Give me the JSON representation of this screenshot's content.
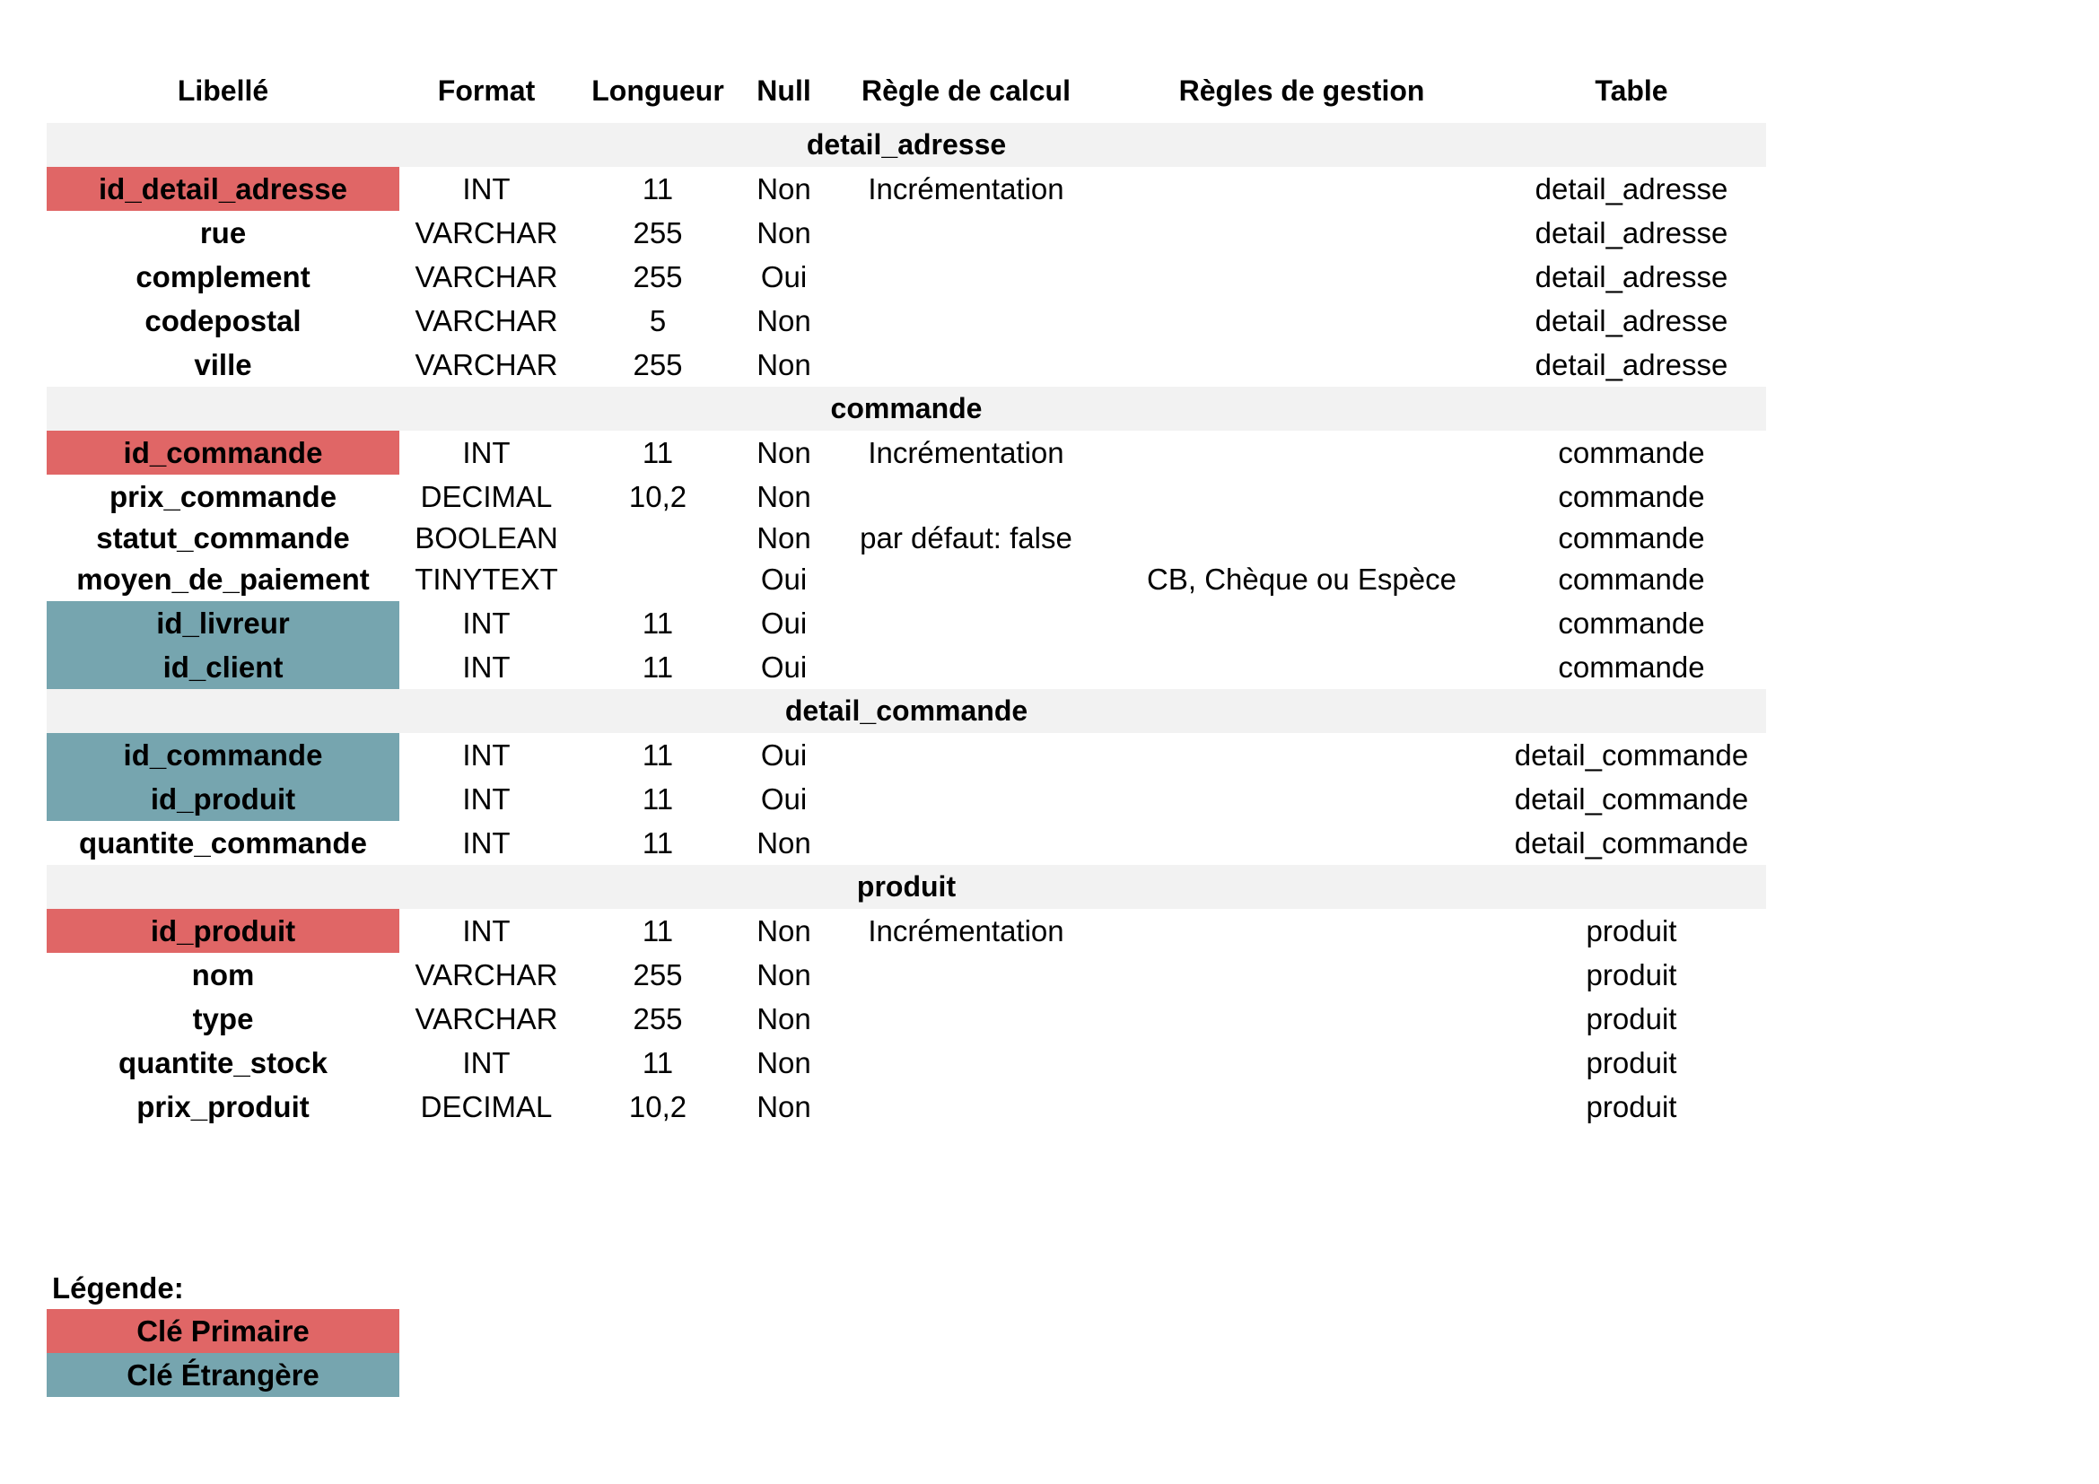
{
  "columns": [
    "Libellé",
    "Format",
    "Longueur",
    "Null",
    "Règle de calcul",
    "Règles de gestion",
    "Table"
  ],
  "sections": [
    {
      "name": "detail_adresse",
      "rows": [
        {
          "libelle": "id_detail_adresse",
          "format": "INT",
          "longueur": "11",
          "null": "Non",
          "calcul": "Incrémentation",
          "gestion": "",
          "table": "detail_adresse",
          "key": "primary"
        },
        {
          "libelle": "rue",
          "format": "VARCHAR",
          "longueur": "255",
          "null": "Non",
          "calcul": "",
          "gestion": "",
          "table": "detail_adresse",
          "key": ""
        },
        {
          "libelle": "complement",
          "format": "VARCHAR",
          "longueur": "255",
          "null": "Oui",
          "calcul": "",
          "gestion": "",
          "table": "detail_adresse",
          "key": ""
        },
        {
          "libelle": "codepostal",
          "format": "VARCHAR",
          "longueur": "5",
          "null": "Non",
          "calcul": "",
          "gestion": "",
          "table": "detail_adresse",
          "key": ""
        },
        {
          "libelle": "ville",
          "format": "VARCHAR",
          "longueur": "255",
          "null": "Non",
          "calcul": "",
          "gestion": "",
          "table": "detail_adresse",
          "key": ""
        }
      ]
    },
    {
      "name": "commande",
      "rows": [
        {
          "libelle": "id_commande",
          "format": "INT",
          "longueur": "11",
          "null": "Non",
          "calcul": "Incrémentation",
          "gestion": "",
          "table": "commande",
          "key": "primary"
        },
        {
          "libelle": "prix_commande",
          "format": "DECIMAL",
          "longueur": "10,2",
          "null": "Non",
          "calcul": "",
          "gestion": "",
          "table": "commande",
          "key": ""
        },
        {
          "libelle": "statut_commande",
          "format": "BOOLEAN",
          "longueur": "",
          "null": "Non",
          "calcul": "par défaut: false",
          "gestion": "",
          "table": "commande",
          "key": "",
          "tight": true
        },
        {
          "libelle": "moyen_de_paiement",
          "format": "TINYTEXT",
          "longueur": "",
          "null": "Oui",
          "calcul": "",
          "gestion": "CB, Chèque ou Espèce",
          "table": "commande",
          "key": ""
        },
        {
          "libelle": "id_livreur",
          "format": "INT",
          "longueur": "11",
          "null": "Oui",
          "calcul": "",
          "gestion": "",
          "table": "commande",
          "key": "foreign"
        },
        {
          "libelle": "id_client",
          "format": "INT",
          "longueur": "11",
          "null": "Oui",
          "calcul": "",
          "gestion": "",
          "table": "commande",
          "key": "foreign"
        }
      ]
    },
    {
      "name": "detail_commande",
      "rows": [
        {
          "libelle": "id_commande",
          "format": "INT",
          "longueur": "11",
          "null": "Oui",
          "calcul": "",
          "gestion": "",
          "table": "detail_commande",
          "key": "foreign"
        },
        {
          "libelle": "id_produit",
          "format": "INT",
          "longueur": "11",
          "null": "Oui",
          "calcul": "",
          "gestion": "",
          "table": "detail_commande",
          "key": "foreign"
        },
        {
          "libelle": "quantite_commande",
          "format": "INT",
          "longueur": "11",
          "null": "Non",
          "calcul": "",
          "gestion": "",
          "table": "detail_commande",
          "key": ""
        }
      ]
    },
    {
      "name": "produit",
      "rows": [
        {
          "libelle": "id_produit",
          "format": "INT",
          "longueur": "11",
          "null": "Non",
          "calcul": "Incrémentation",
          "gestion": "",
          "table": "produit",
          "key": "primary"
        },
        {
          "libelle": "nom",
          "format": "VARCHAR",
          "longueur": "255",
          "null": "Non",
          "calcul": "",
          "gestion": "",
          "table": "produit",
          "key": ""
        },
        {
          "libelle": "type",
          "format": "VARCHAR",
          "longueur": "255",
          "null": "Non",
          "calcul": "",
          "gestion": "",
          "table": "produit",
          "key": ""
        },
        {
          "libelle": "quantite_stock",
          "format": "INT",
          "longueur": "11",
          "null": "Non",
          "calcul": "",
          "gestion": "",
          "table": "produit",
          "key": ""
        },
        {
          "libelle": "prix_produit",
          "format": "DECIMAL",
          "longueur": "10,2",
          "null": "Non",
          "calcul": "",
          "gestion": "",
          "table": "produit",
          "key": ""
        }
      ]
    }
  ],
  "legend": {
    "title": "Légende:",
    "primary": "Clé Primaire",
    "foreign": "Clé Étrangère"
  },
  "colors": {
    "primary_key": "#e06666",
    "foreign_key": "#76a5af",
    "section_band": "#f2f2f2"
  }
}
